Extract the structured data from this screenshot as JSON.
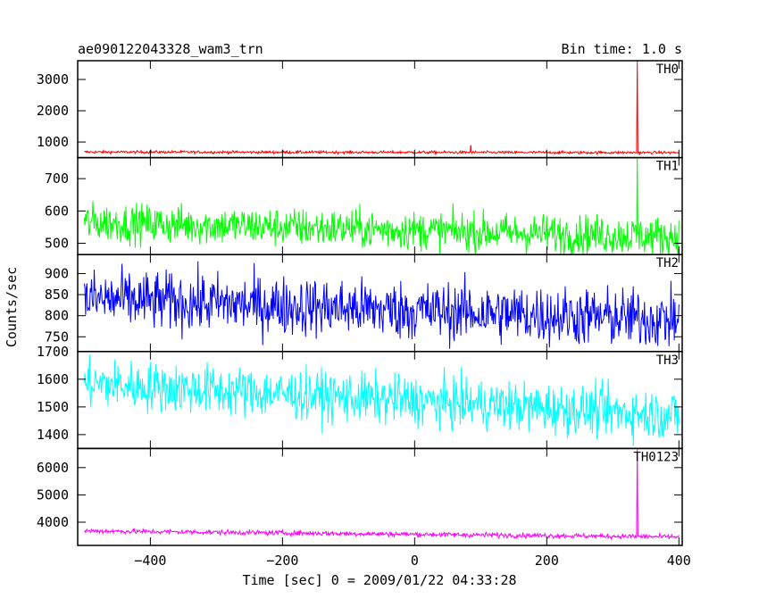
{
  "chart_data": {
    "type": "line",
    "title": "ae090122043328_wam3_trn",
    "bin_time_label": "Bin time: 1.0 s",
    "xlabel": "Time [sec] 0 = 2009/01/22 04:33:28",
    "ylabel": "Counts/sec",
    "xlim": [
      -510,
      405
    ],
    "x_ticks": [
      -400,
      -200,
      0,
      200,
      400
    ],
    "x_tick_labels": [
      "−400",
      "−200",
      "0",
      "200",
      "400"
    ],
    "x_range": [
      -500,
      400
    ],
    "panels": [
      {
        "name": "TH0",
        "color": "#ff0000",
        "ylim": [
          500,
          3600
        ],
        "y_ticks": [
          1000,
          2000,
          3000
        ],
        "y_tick_labels": [
          "1000",
          "2000",
          "3000"
        ],
        "baseline": 680,
        "noise": 22,
        "trend": -20,
        "spikes": [
          {
            "x": 85,
            "y": 900
          },
          {
            "x": 337,
            "y": 3600
          }
        ]
      },
      {
        "name": "TH1",
        "color": "#00ff00",
        "ylim": [
          465,
          765
        ],
        "y_ticks": [
          500,
          600,
          700
        ],
        "y_tick_labels": [
          "500",
          "600",
          "700"
        ],
        "baseline": 565,
        "noise": 30,
        "trend": -45,
        "spikes": [
          {
            "x": 337,
            "y": 765
          }
        ]
      },
      {
        "name": "TH2",
        "color": "#0000ff",
        "ylim": [
          715,
          945
        ],
        "y_ticks": [
          750,
          800,
          850,
          900
        ],
        "y_tick_labels": [
          "750",
          "800",
          "850",
          "900"
        ],
        "baseline": 840,
        "noise": 35,
        "trend": -50,
        "spikes": []
      },
      {
        "name": "TH3",
        "color": "#00ffff",
        "ylim": [
          1350,
          1700
        ],
        "y_ticks": [
          1400,
          1500,
          1600,
          1700
        ],
        "y_tick_labels": [
          "1400",
          "1500",
          "1600",
          "1700"
        ],
        "baseline": 1585,
        "noise": 45,
        "trend": -115,
        "spikes": []
      },
      {
        "name": "TH0123",
        "color": "#ff00ff",
        "ylim": [
          3150,
          6700
        ],
        "y_ticks": [
          4000,
          5000,
          6000
        ],
        "y_tick_labels": [
          "4000",
          "5000",
          "6000"
        ],
        "baseline": 3680,
        "noise": 45,
        "trend": -220,
        "spikes": [
          {
            "x": 337,
            "y": 6700
          }
        ]
      }
    ]
  }
}
